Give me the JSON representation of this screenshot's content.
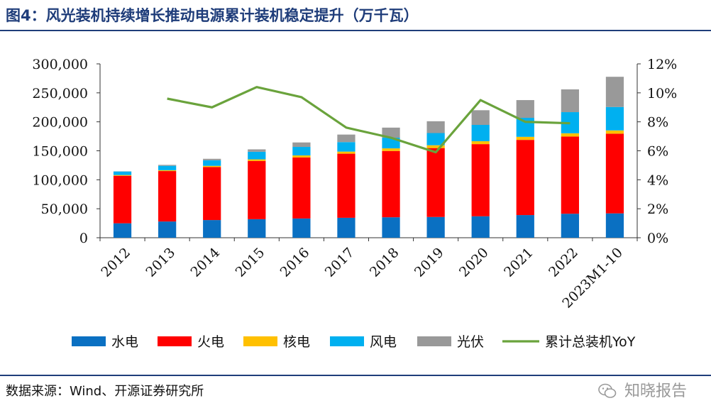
{
  "title": "图4：风光装机持续增长推动电源累计装机稳定提升（万千瓦）",
  "source": "数据来源：Wind、开源证券研究所",
  "watermark": "知晓报告",
  "colors": {
    "title": "#1f3d7a",
    "hydro": "#0a70c2",
    "thermal": "#ff0000",
    "nuclear": "#ffc000",
    "wind": "#00b0f0",
    "solar": "#999999",
    "yoy": "#6aa33c"
  },
  "chart_data": {
    "type": "bar",
    "stacked": true,
    "categories": [
      "2012",
      "2013",
      "2014",
      "2015",
      "2016",
      "2017",
      "2018",
      "2019",
      "2020",
      "2021",
      "2022",
      "2023M1-10"
    ],
    "series": [
      {
        "name": "水电",
        "key": "hydro",
        "values": [
          24900,
          28000,
          30500,
          32000,
          33200,
          34400,
          35300,
          35800,
          37000,
          39100,
          41400,
          42000
        ]
      },
      {
        "name": "火电",
        "key": "thermal",
        "values": [
          82000,
          87000,
          91500,
          100500,
          105400,
          110600,
          114400,
          118900,
          124500,
          129700,
          133200,
          137500
        ]
      },
      {
        "name": "核电",
        "key": "nuclear",
        "values": [
          1300,
          1500,
          2000,
          2700,
          3400,
          3600,
          4500,
          4900,
          5000,
          5300,
          5600,
          5700
        ]
      },
      {
        "name": "风电",
        "key": "wind",
        "values": [
          6100,
          7600,
          9700,
          13100,
          14700,
          16400,
          18400,
          21000,
          28200,
          32800,
          36500,
          40400
        ]
      },
      {
        "name": "光伏",
        "key": "solar",
        "values": [
          300,
          1600,
          2500,
          4200,
          7700,
          13000,
          17400,
          20400,
          25300,
          30600,
          39300,
          52100
        ]
      }
    ],
    "line": {
      "name": "累计总装机YoY",
      "key": "yoy",
      "x": [
        "2013",
        "2014",
        "2015",
        "2016",
        "2017",
        "2018",
        "2019",
        "2020",
        "2021",
        "2022"
      ],
      "values": [
        9.6,
        9.0,
        10.4,
        9.7,
        7.6,
        6.9,
        5.9,
        9.5,
        8.0,
        7.9
      ]
    },
    "y_left": {
      "min": 0,
      "max": 300000,
      "step": 50000,
      "tick_labels": [
        "0",
        "50,000",
        "100,000",
        "150,000",
        "200,000",
        "250,000",
        "300,000"
      ]
    },
    "y_right": {
      "min": 0,
      "max": 12,
      "step": 2,
      "tick_labels": [
        "0%",
        "2%",
        "4%",
        "6%",
        "8%",
        "10%",
        "12%"
      ]
    },
    "legend": [
      "水电",
      "火电",
      "核电",
      "风电",
      "光伏",
      "累计总装机YoY"
    ],
    "legend_position": "bottom"
  }
}
